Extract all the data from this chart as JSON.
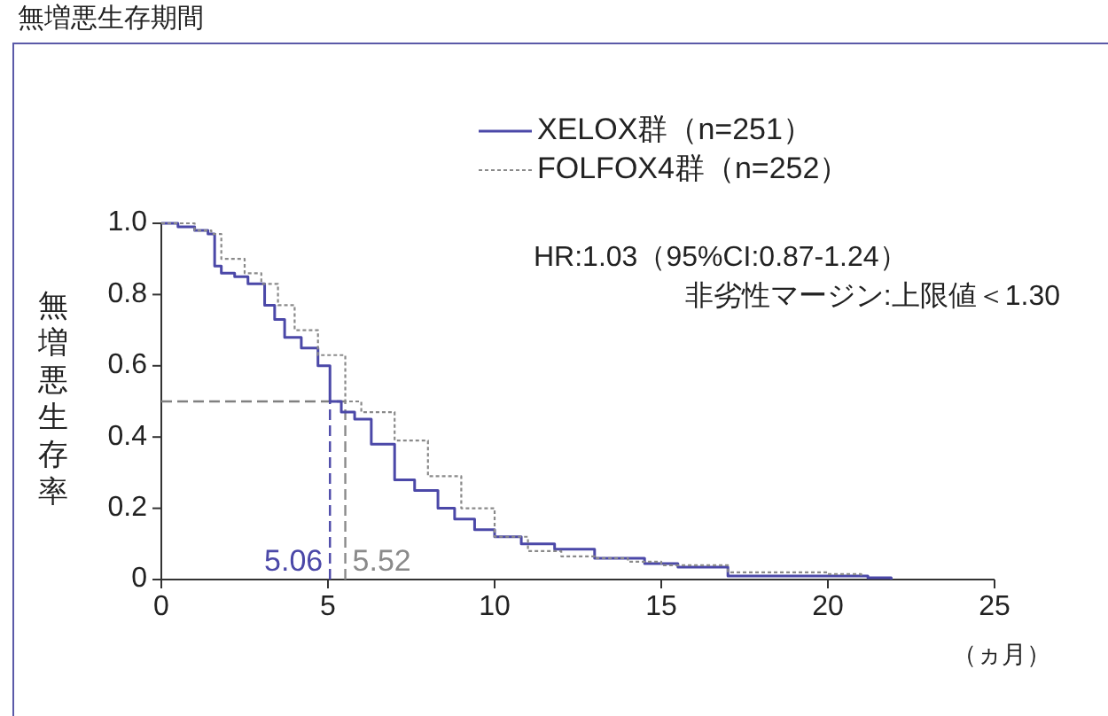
{
  "chart_data": {
    "type": "step",
    "title": "無増悪生存期間",
    "xlabel": "（ヵ月）",
    "ylabel": "無増悪生存率",
    "xlim": [
      0,
      25
    ],
    "xticks": [
      0,
      5,
      10,
      15,
      20,
      25
    ],
    "ylim": [
      0,
      1.0
    ],
    "yticks": [
      {
        "value": 0,
        "label": "0"
      },
      0.2,
      0.4,
      0.6,
      0.8,
      {
        "value": 1.0,
        "label": "1.0"
      }
    ],
    "grid": false,
    "legend": "top right",
    "series": [
      {
        "name": "XELOX群（n=251）",
        "color": "#4b48a8",
        "line_style": "solid",
        "x": [
          0,
          0.5,
          1.0,
          1.4,
          1.6,
          1.8,
          2.2,
          2.6,
          3.1,
          3.4,
          3.7,
          4.2,
          4.7,
          5.06,
          5.4,
          5.8,
          6.3,
          7.0,
          7.6,
          8.3,
          8.8,
          9.4,
          10.0,
          10.8,
          11.8,
          13.0,
          14.5,
          15.5,
          17.0,
          21.2,
          21.9
        ],
        "values": [
          1.0,
          0.99,
          0.98,
          0.97,
          0.88,
          0.86,
          0.85,
          0.83,
          0.77,
          0.73,
          0.68,
          0.65,
          0.6,
          0.5,
          0.47,
          0.45,
          0.38,
          0.28,
          0.25,
          0.2,
          0.17,
          0.14,
          0.12,
          0.1,
          0.085,
          0.06,
          0.045,
          0.035,
          0.01,
          0.005,
          0
        ]
      },
      {
        "name": "FOLFOX4群（n=252）",
        "color": "#8a8a8a",
        "line_style": "dotted",
        "x": [
          0,
          1.0,
          1.5,
          1.8,
          2.5,
          3.0,
          3.5,
          4.0,
          4.7,
          5.52,
          6.0,
          7.0,
          8.0,
          9.0,
          10.0,
          11.0,
          12.0,
          13.0,
          14.0,
          15.0,
          17.0,
          20.0,
          21.0
        ],
        "values": [
          1.0,
          0.98,
          0.97,
          0.9,
          0.86,
          0.83,
          0.77,
          0.7,
          0.63,
          0.5,
          0.47,
          0.39,
          0.29,
          0.2,
          0.12,
          0.08,
          0.065,
          0.06,
          0.05,
          0.04,
          0.02,
          0.015,
          0.005
        ]
      }
    ],
    "ref_lines": [
      {
        "axis": "y",
        "value": 0.5,
        "color": "#808080",
        "line_style": "dashed"
      },
      {
        "axis": "x",
        "value": 5.06,
        "label": "5.06",
        "color": "#4b48a8",
        "line_style": "dashed"
      },
      {
        "axis": "x",
        "value": 5.52,
        "label": "5.52",
        "color": "#8a8a8a",
        "line_style": "dashed"
      }
    ],
    "annotations": [
      "HR:1.03（95%CI:0.87-1.24）",
      "非劣性マージン:上限値＜1.30"
    ]
  }
}
